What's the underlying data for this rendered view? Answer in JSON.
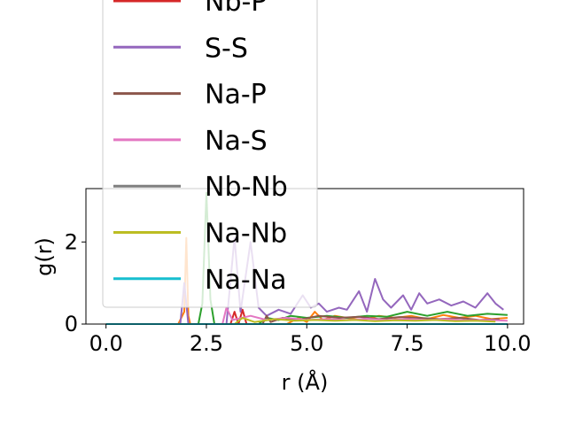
{
  "chart_data": {
    "type": "line",
    "xlabel": "r (Å)",
    "ylabel": "g(r)",
    "xlim": [
      -0.5,
      10.4
    ],
    "ylim": [
      0,
      3.3
    ],
    "x_ticks": [
      0.0,
      2.5,
      5.0,
      7.5,
      10.0
    ],
    "x_tick_labels": [
      "0.0",
      "2.5",
      "5.0",
      "7.5",
      "10.0"
    ],
    "y_ticks": [
      0,
      2
    ],
    "y_tick_labels": [
      "0",
      "2"
    ],
    "grid": false,
    "legend": {
      "placement": "upper-left, extending above the axes",
      "entries": [
        {
          "name": "Nb-P",
          "color": "#d62728"
        },
        {
          "name": "S-S",
          "color": "#9467bd"
        },
        {
          "name": "Na-P",
          "color": "#8c564b"
        },
        {
          "name": "Na-S",
          "color": "#e377c2"
        },
        {
          "name": "Nb-Nb",
          "color": "#7f7f7f"
        },
        {
          "name": "Na-Nb",
          "color": "#bcbd22"
        },
        {
          "name": "Na-Na",
          "color": "#17becf"
        }
      ]
    },
    "series": [
      {
        "color": "#ff7f0e",
        "points": [
          [
            0,
            0
          ],
          [
            1.8,
            0
          ],
          [
            1.95,
            0.3
          ],
          [
            2.0,
            2.1
          ],
          [
            2.05,
            0.2
          ],
          [
            2.1,
            0
          ],
          [
            4.5,
            0
          ],
          [
            4.8,
            0.15
          ],
          [
            5.0,
            0.05
          ],
          [
            5.2,
            0.3
          ],
          [
            5.4,
            0.1
          ],
          [
            5.7,
            0.2
          ],
          [
            6.0,
            0.15
          ],
          [
            6.4,
            0.1
          ],
          [
            6.8,
            0.2
          ],
          [
            7.2,
            0.15
          ],
          [
            7.6,
            0.2
          ],
          [
            8.0,
            0.12
          ],
          [
            8.4,
            0.22
          ],
          [
            8.8,
            0.15
          ],
          [
            9.2,
            0.2
          ],
          [
            9.6,
            0.12
          ],
          [
            10.0,
            0.15
          ]
        ]
      },
      {
        "color": "#2ca02c",
        "points": [
          [
            0,
            0
          ],
          [
            2.3,
            0
          ],
          [
            2.4,
            0.5
          ],
          [
            2.5,
            3.2
          ],
          [
            2.6,
            0.6
          ],
          [
            2.7,
            0
          ],
          [
            3.8,
            0
          ],
          [
            4.0,
            0.15
          ],
          [
            4.3,
            0.1
          ],
          [
            4.6,
            0.2
          ],
          [
            5.0,
            0.15
          ],
          [
            5.5,
            0.2
          ],
          [
            6.0,
            0.15
          ],
          [
            6.5,
            0.2
          ],
          [
            7.0,
            0.18
          ],
          [
            7.5,
            0.3
          ],
          [
            8.0,
            0.2
          ],
          [
            8.5,
            0.3
          ],
          [
            9.0,
            0.2
          ],
          [
            9.5,
            0.25
          ],
          [
            10.0,
            0.22
          ]
        ]
      },
      {
        "color": "#d62728",
        "points": [
          [
            0,
            0
          ],
          [
            3.1,
            0
          ],
          [
            3.2,
            0.3
          ],
          [
            3.3,
            0
          ],
          [
            3.4,
            0.35
          ],
          [
            3.5,
            0
          ],
          [
            10.0,
            0
          ]
        ]
      },
      {
        "color": "#9467bd",
        "points": [
          [
            0,
            0
          ],
          [
            1.85,
            0
          ],
          [
            1.95,
            1.0
          ],
          [
            2.05,
            0
          ],
          [
            3.0,
            0
          ],
          [
            3.2,
            2.1
          ],
          [
            3.35,
            0.3
          ],
          [
            3.6,
            2.0
          ],
          [
            3.8,
            0.4
          ],
          [
            4.0,
            0.2
          ],
          [
            4.3,
            0.35
          ],
          [
            4.6,
            0.25
          ],
          [
            4.9,
            0.7
          ],
          [
            5.1,
            0.4
          ],
          [
            5.3,
            0.5
          ],
          [
            5.5,
            0.3
          ],
          [
            5.8,
            0.4
          ],
          [
            6.0,
            0.35
          ],
          [
            6.3,
            0.8
          ],
          [
            6.5,
            0.3
          ],
          [
            6.7,
            1.1
          ],
          [
            6.9,
            0.6
          ],
          [
            7.1,
            0.4
          ],
          [
            7.4,
            0.7
          ],
          [
            7.6,
            0.35
          ],
          [
            7.8,
            0.75
          ],
          [
            8.0,
            0.5
          ],
          [
            8.3,
            0.6
          ],
          [
            8.6,
            0.45
          ],
          [
            8.9,
            0.55
          ],
          [
            9.2,
            0.4
          ],
          [
            9.5,
            0.75
          ],
          [
            9.7,
            0.5
          ],
          [
            9.9,
            0.35
          ]
        ]
      },
      {
        "color": "#8c564b",
        "points": [
          [
            0,
            0
          ],
          [
            3.9,
            0
          ],
          [
            4.0,
            0.2
          ],
          [
            4.1,
            0.05
          ],
          [
            4.4,
            0.15
          ],
          [
            4.8,
            0.1
          ],
          [
            5.3,
            0.2
          ],
          [
            5.8,
            0.15
          ],
          [
            6.3,
            0.18
          ],
          [
            6.8,
            0.12
          ],
          [
            7.3,
            0.17
          ],
          [
            7.8,
            0.15
          ],
          [
            8.3,
            0.12
          ],
          [
            8.8,
            0.15
          ],
          [
            9.3,
            0.1
          ],
          [
            9.8,
            0.12
          ]
        ]
      },
      {
        "color": "#e377c2",
        "points": [
          [
            0,
            0
          ],
          [
            2.9,
            0
          ],
          [
            3.0,
            0.4
          ],
          [
            3.15,
            0.1
          ],
          [
            3.6,
            0.2
          ],
          [
            4.0,
            0.1
          ],
          [
            4.5,
            0.15
          ],
          [
            5.0,
            0.1
          ],
          [
            5.5,
            0.12
          ],
          [
            6.0,
            0.1
          ],
          [
            6.5,
            0.13
          ],
          [
            7.0,
            0.1
          ],
          [
            7.5,
            0.12
          ],
          [
            8.0,
            0.1
          ],
          [
            8.5,
            0.12
          ],
          [
            9.0,
            0.09
          ],
          [
            9.5,
            0.1
          ],
          [
            10.0,
            0.08
          ]
        ]
      },
      {
        "color": "#bcbd22",
        "points": [
          [
            0,
            0
          ],
          [
            3.2,
            0
          ],
          [
            3.4,
            0.15
          ],
          [
            3.7,
            0.05
          ],
          [
            4.2,
            0.12
          ],
          [
            4.7,
            0.08
          ],
          [
            5.2,
            0.1
          ],
          [
            5.7,
            0.08
          ],
          [
            6.2,
            0.1
          ],
          [
            6.7,
            0.07
          ],
          [
            7.2,
            0.09
          ],
          [
            7.7,
            0.08
          ],
          [
            8.2,
            0.1
          ],
          [
            8.7,
            0.07
          ],
          [
            9.2,
            0.08
          ],
          [
            9.7,
            0.06
          ]
        ]
      },
      {
        "color": "#17becf",
        "points": [
          [
            0,
            0
          ],
          [
            10.0,
            0
          ]
        ]
      }
    ]
  }
}
